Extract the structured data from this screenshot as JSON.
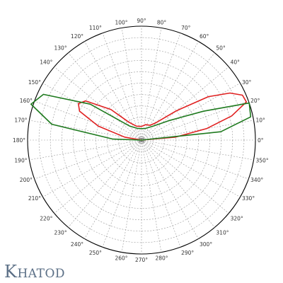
{
  "brand": {
    "text": "Khatod",
    "initial": "K",
    "rest": "HATOD",
    "color": "#5b6f86"
  },
  "chart_data": {
    "type": "polar",
    "title": "",
    "angle_labels": [
      "0°",
      "10°",
      "20°",
      "30°",
      "40°",
      "50°",
      "60°",
      "70°",
      "80°",
      "90°",
      "100°",
      "110°",
      "120°",
      "130°",
      "140°",
      "150°",
      "160°",
      "170°",
      "180°",
      "190°",
      "200°",
      "210°",
      "220°",
      "230°",
      "240°",
      "250°",
      "260°",
      "270°",
      "280°",
      "290°",
      "300°",
      "310°",
      "320°",
      "330°",
      "340°",
      "350°"
    ],
    "angle_step_deg": 10,
    "radial_divisions": 10,
    "r_max": 1.0,
    "grid": true,
    "series": [
      {
        "color": "#e02020",
        "points": [
          [
            0,
            0.0
          ],
          [
            5,
            0.3
          ],
          [
            10,
            0.58
          ],
          [
            15,
            0.82
          ],
          [
            20,
            0.98
          ],
          [
            24,
            0.97
          ],
          [
            28,
            0.88
          ],
          [
            33,
            0.7
          ],
          [
            40,
            0.4
          ],
          [
            50,
            0.2
          ],
          [
            60,
            0.15
          ],
          [
            75,
            0.14
          ],
          [
            90,
            0.12
          ],
          [
            110,
            0.13
          ],
          [
            125,
            0.19
          ],
          [
            135,
            0.38
          ],
          [
            145,
            0.6
          ],
          [
            150,
            0.64
          ],
          [
            155,
            0.6
          ],
          [
            162,
            0.4
          ],
          [
            170,
            0.15
          ],
          [
            180,
            0.0
          ]
        ]
      },
      {
        "color": "#1e7a1e",
        "points": [
          [
            0,
            0.0
          ],
          [
            6,
            0.7
          ],
          [
            12,
            0.98
          ],
          [
            19,
            1.0
          ],
          [
            25,
            0.6
          ],
          [
            35,
            0.3
          ],
          [
            50,
            0.16
          ],
          [
            70,
            0.11
          ],
          [
            90,
            0.1
          ],
          [
            110,
            0.11
          ],
          [
            130,
            0.16
          ],
          [
            145,
            0.55
          ],
          [
            155,
            0.95
          ],
          [
            162,
            1.02
          ],
          [
            170,
            0.8
          ],
          [
            178,
            0.25
          ],
          [
            180,
            0.0
          ]
        ]
      }
    ]
  }
}
